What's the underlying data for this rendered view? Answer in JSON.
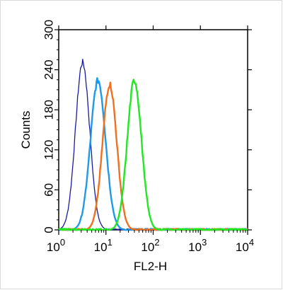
{
  "chart_data": {
    "type": "line",
    "xlabel": "FL2-H",
    "ylabel": "Counts",
    "x_scale": "log",
    "xlim": [
      1,
      10000
    ],
    "ylim": [
      0,
      300
    ],
    "x_ticks": [
      {
        "value": 1,
        "base": "10",
        "exp": "0"
      },
      {
        "value": 10,
        "base": "10",
        "exp": "1"
      },
      {
        "value": 100,
        "base": "10",
        "exp": "2"
      },
      {
        "value": 1000,
        "base": "10",
        "exp": "3"
      },
      {
        "value": 10000,
        "base": "10",
        "exp": "4"
      }
    ],
    "y_ticks": [
      {
        "value": 0,
        "label": "0"
      },
      {
        "value": 60,
        "label": "60"
      },
      {
        "value": 120,
        "label": "120"
      },
      {
        "value": 180,
        "label": "180"
      },
      {
        "value": 240,
        "label": "240"
      },
      {
        "value": 300,
        "label": "300"
      }
    ],
    "series": [
      {
        "color": "#1a1aa0",
        "peak_x": 3.2,
        "peak_y": 251,
        "width": 0.15
      },
      {
        "color": "#1e9ae8",
        "peak_x": 6.8,
        "peak_y": 224,
        "width": 0.16
      },
      {
        "color": "#f07020",
        "peak_x": 12,
        "peak_y": 218,
        "width": 0.15
      },
      {
        "color": "#22e822",
        "peak_x": 40,
        "peak_y": 224,
        "width": 0.15
      }
    ]
  }
}
